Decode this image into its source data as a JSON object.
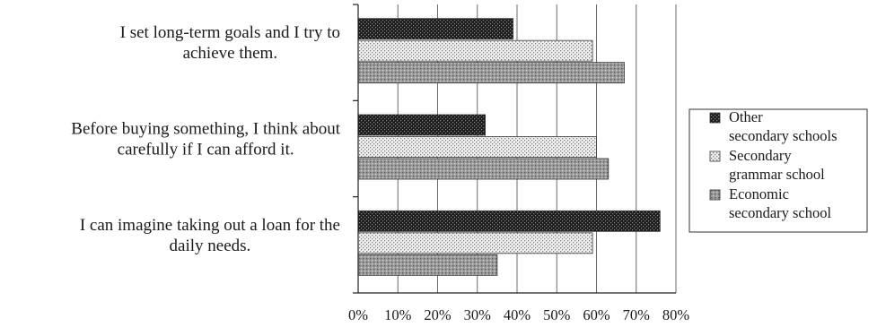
{
  "chart_data": {
    "type": "bar",
    "orientation": "horizontal",
    "categories": [
      [
        "I set long-term goals and I try to",
        "achieve them."
      ],
      [
        "Before buying something, I think about",
        "carefully if I can afford it."
      ],
      [
        "I can imagine taking out a loan for the",
        "daily needs."
      ]
    ],
    "series": [
      {
        "name": [
          "Other",
          "secondary schools"
        ],
        "values": [
          39,
          32,
          76
        ],
        "pattern": "dark-dots"
      },
      {
        "name": [
          "Secondary",
          "grammar school"
        ],
        "values": [
          59,
          60,
          59
        ],
        "pattern": "light-dots"
      },
      {
        "name": [
          "Economic",
          "secondary school"
        ],
        "values": [
          67,
          63,
          35
        ],
        "pattern": "gray-dots"
      }
    ],
    "x_ticks": [
      "0%",
      "10%",
      "20%",
      "30%",
      "40%",
      "50%",
      "60%",
      "70%",
      "80%"
    ],
    "xlim": [
      0,
      80
    ],
    "grid": true,
    "legend_position": "right"
  }
}
